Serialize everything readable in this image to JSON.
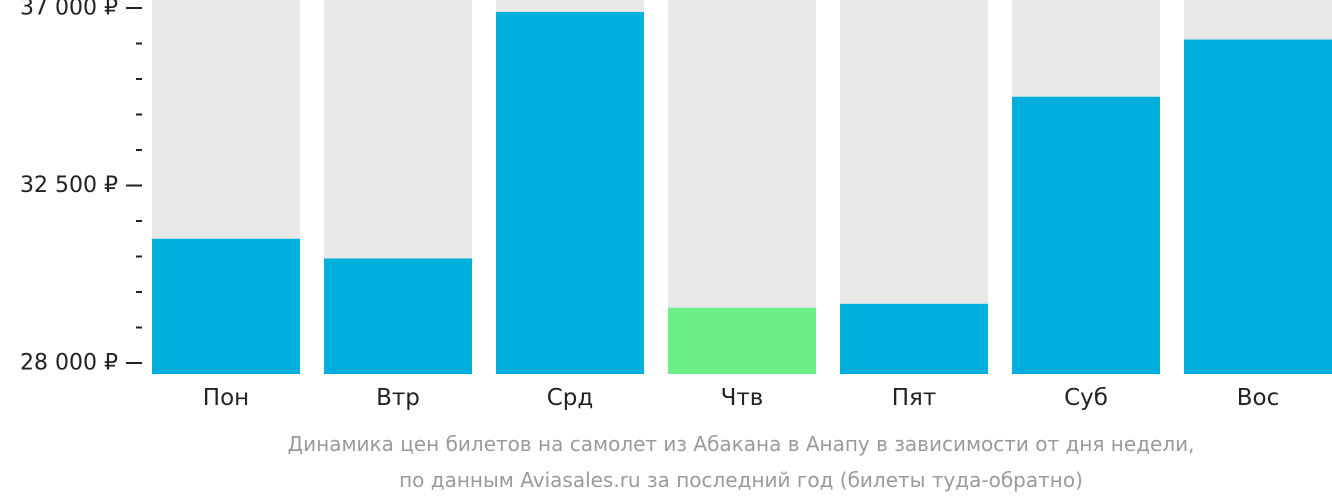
{
  "chart_data": {
    "type": "bar",
    "categories": [
      "Пон",
      "Втр",
      "Срд",
      "Чтв",
      "Пят",
      "Суб",
      "Вос"
    ],
    "values": [
      31150,
      30650,
      36900,
      29400,
      29500,
      34750,
      36200
    ],
    "highlight_index": 3,
    "ylim": [
      28000,
      37000
    ],
    "yticks": [
      28000,
      32500,
      37000
    ],
    "ytick_labels": [
      "28 000 ₽",
      "32 500 ₽",
      "37 000 ₽"
    ],
    "minor_ticks_between_major": 4,
    "grid": false,
    "legend": "none",
    "title": "",
    "xlabel": "",
    "ylabel": "",
    "caption_lines": [
      "Динамика цен билетов на самолет из Абакана в Анапу в зависимости от дня недели,",
      "по данным Aviasales.ru за последний год (билеты туда-обратно)"
    ]
  },
  "colors": {
    "bar": "#00b0dc",
    "bar_highlight": "#6bef86",
    "bar_track": "#e8e8e8",
    "axis": "#222222",
    "text": "#222222",
    "caption": "#9a9a9a"
  }
}
